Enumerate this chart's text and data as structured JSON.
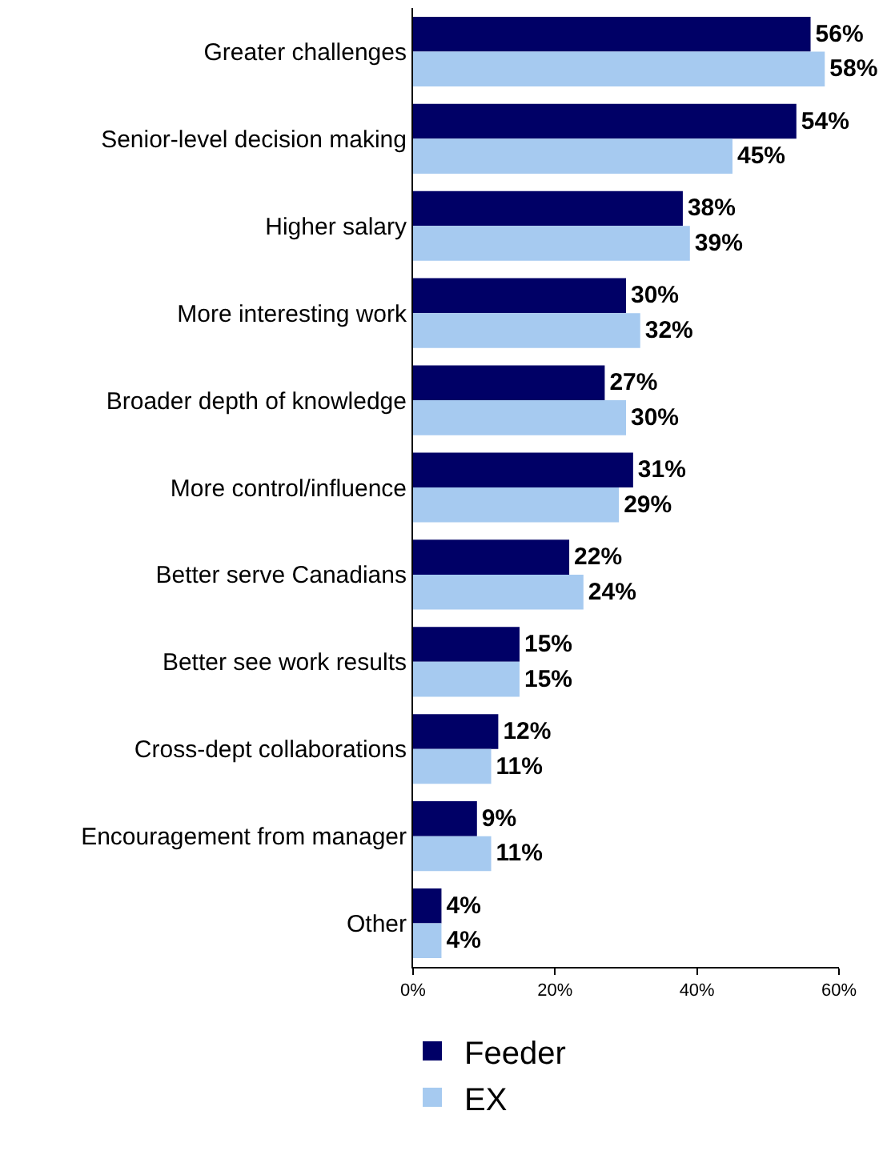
{
  "chart_data": {
    "type": "bar",
    "orientation": "horizontal",
    "categories": [
      "Greater challenges",
      "Senior-level decision making",
      "Higher salary",
      "More interesting work",
      "Broader depth of knowledge",
      "More control/influence",
      "Better serve Canadians",
      "Better see work results",
      "Cross-dept collaborations",
      "Encouragement from manager",
      "Other"
    ],
    "series": [
      {
        "name": "Feeder",
        "color": "#000066",
        "values": [
          56,
          54,
          38,
          30,
          27,
          31,
          22,
          15,
          12,
          9,
          4
        ],
        "value_labels": [
          "56%",
          "54%",
          "38%",
          "30%",
          "27%",
          "31%",
          "22%",
          "15%",
          "12%",
          "9%",
          "4%"
        ]
      },
      {
        "name": "EX",
        "color": "#a6caf0",
        "values": [
          58,
          45,
          39,
          32,
          30,
          29,
          24,
          15,
          11,
          11,
          4
        ],
        "value_labels": [
          "58%",
          "45%",
          "39%",
          "32%",
          "30%",
          "29%",
          "24%",
          "15%",
          "11%",
          "11%",
          "4%"
        ]
      }
    ],
    "xlim": [
      0,
      60
    ],
    "xticks": [
      {
        "value": 0,
        "label": "0%"
      },
      {
        "value": 20,
        "label": "20%"
      },
      {
        "value": 40,
        "label": "40%"
      },
      {
        "value": 60,
        "label": "60%"
      }
    ],
    "legend": "bottom left"
  }
}
